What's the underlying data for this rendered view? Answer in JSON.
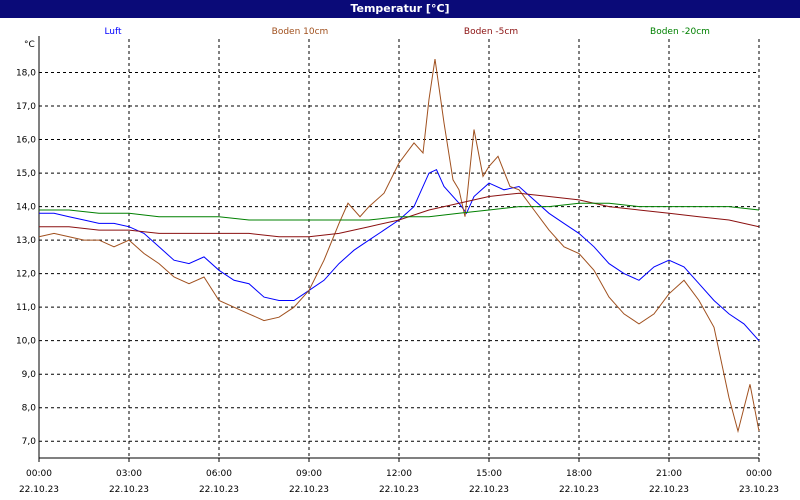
{
  "window": {
    "title": "Temperatur [°C]"
  },
  "chart_data": {
    "type": "line",
    "title": "Temperatur [°C]",
    "ylabel": "°C",
    "ylim": [
      6.5,
      19.0
    ],
    "y_ticks": [
      "7,0",
      "8,0",
      "9,0",
      "10,0",
      "11,0",
      "12,0",
      "13,0",
      "14,0",
      "15,0",
      "16,0",
      "17,0",
      "18,0"
    ],
    "xlim": [
      0,
      24
    ],
    "x_ticks": [
      {
        "time": "00:00",
        "date": "22.10.23"
      },
      {
        "time": "03:00",
        "date": "22.10.23"
      },
      {
        "time": "06:00",
        "date": "22.10.23"
      },
      {
        "time": "09:00",
        "date": "22.10.23"
      },
      {
        "time": "12:00",
        "date": "22.10.23"
      },
      {
        "time": "15:00",
        "date": "22.10.23"
      },
      {
        "time": "18:00",
        "date": "22.10.23"
      },
      {
        "time": "21:00",
        "date": "22.10.23"
      },
      {
        "time": "00:00",
        "date": "23.10.23"
      }
    ],
    "grid": true,
    "legend_position": "top",
    "series": [
      {
        "name": "Luft",
        "color": "#0000ff",
        "x": [
          0,
          0.5,
          1,
          1.5,
          2,
          2.5,
          3,
          3.5,
          4,
          4.5,
          5,
          5.5,
          6,
          6.5,
          7,
          7.5,
          8,
          8.5,
          9,
          9.5,
          10,
          10.5,
          11,
          11.5,
          12,
          12.5,
          13,
          13.25,
          13.5,
          14,
          14.25,
          14.5,
          15,
          15.5,
          16,
          16.5,
          17,
          17.5,
          18,
          18.5,
          19,
          19.5,
          20,
          20.5,
          21,
          21.5,
          22,
          22.5,
          23,
          23.5,
          24
        ],
        "y": [
          13.8,
          13.8,
          13.7,
          13.6,
          13.5,
          13.5,
          13.4,
          13.2,
          12.8,
          12.4,
          12.3,
          12.5,
          12.1,
          11.8,
          11.7,
          11.3,
          11.2,
          11.2,
          11.5,
          11.8,
          12.3,
          12.7,
          13.0,
          13.3,
          13.6,
          14.0,
          15.0,
          15.1,
          14.6,
          14.1,
          13.8,
          14.3,
          14.7,
          14.5,
          14.6,
          14.2,
          13.8,
          13.5,
          13.2,
          12.8,
          12.3,
          12.0,
          11.8,
          12.2,
          12.4,
          12.2,
          11.7,
          11.2,
          10.8,
          10.5,
          10.0
        ]
      },
      {
        "name": "Boden 10cm",
        "color": "#a0501e",
        "x": [
          0,
          0.5,
          1,
          1.5,
          2,
          2.5,
          3,
          3.5,
          4,
          4.5,
          5,
          5.5,
          6,
          6.5,
          7,
          7.5,
          8,
          8.5,
          9,
          9.5,
          10,
          10.3,
          10.7,
          11,
          11.5,
          12,
          12.5,
          12.8,
          13,
          13.2,
          13.5,
          13.8,
          14,
          14.2,
          14.5,
          14.8,
          15,
          15.3,
          15.7,
          16,
          16.5,
          17,
          17.5,
          18,
          18.5,
          19,
          19.5,
          20,
          20.5,
          21,
          21.5,
          22,
          22.5,
          23,
          23.3,
          23.7,
          24
        ],
        "y": [
          13.1,
          13.2,
          13.1,
          13.0,
          13.0,
          12.8,
          13.0,
          12.6,
          12.3,
          11.9,
          11.7,
          11.9,
          11.2,
          11.0,
          10.8,
          10.6,
          10.7,
          11.0,
          11.5,
          12.4,
          13.5,
          14.1,
          13.7,
          14.0,
          14.4,
          15.3,
          15.9,
          15.6,
          17.2,
          18.4,
          16.5,
          14.8,
          14.5,
          13.7,
          16.3,
          14.9,
          15.2,
          15.5,
          14.6,
          14.5,
          13.9,
          13.3,
          12.8,
          12.6,
          12.1,
          11.3,
          10.8,
          10.5,
          10.8,
          11.4,
          11.8,
          11.2,
          10.4,
          8.3,
          7.3,
          8.7,
          7.3
        ]
      },
      {
        "name": "Boden -5cm",
        "color": "#8b1010",
        "x": [
          0,
          1,
          2,
          3,
          4,
          5,
          6,
          7,
          8,
          9,
          10,
          11,
          12,
          13,
          14,
          15,
          16,
          17,
          18,
          19,
          20,
          21,
          22,
          23,
          24
        ],
        "y": [
          13.4,
          13.4,
          13.3,
          13.3,
          13.2,
          13.2,
          13.2,
          13.2,
          13.1,
          13.1,
          13.2,
          13.4,
          13.6,
          13.9,
          14.1,
          14.3,
          14.4,
          14.3,
          14.2,
          14.0,
          13.9,
          13.8,
          13.7,
          13.6,
          13.4
        ]
      },
      {
        "name": "Boden -20cm",
        "color": "#008000",
        "x": [
          0,
          1,
          2,
          3,
          4,
          5,
          6,
          7,
          8,
          9,
          10,
          11,
          12,
          13,
          14,
          15,
          16,
          17,
          18,
          19,
          20,
          21,
          22,
          23,
          24
        ],
        "y": [
          13.9,
          13.9,
          13.8,
          13.8,
          13.7,
          13.7,
          13.7,
          13.6,
          13.6,
          13.6,
          13.6,
          13.6,
          13.7,
          13.7,
          13.8,
          13.9,
          14.0,
          14.0,
          14.1,
          14.1,
          14.0,
          14.0,
          14.0,
          14.0,
          13.9
        ]
      }
    ]
  }
}
